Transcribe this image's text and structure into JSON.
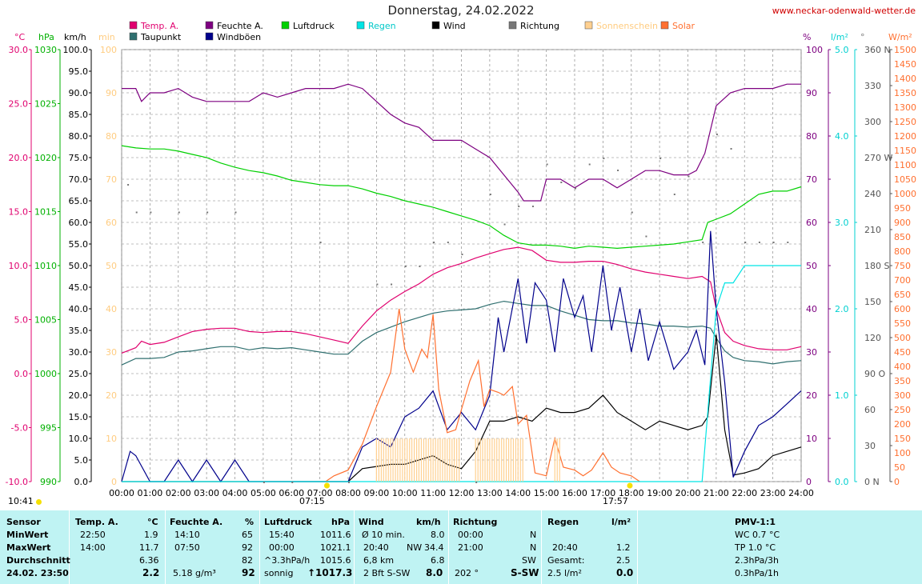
{
  "title": "Donnerstag, 24.02.2022",
  "url": "www.neckar-odenwald-wetter.de",
  "legend": [
    {
      "label": "Temp. A.",
      "color": "#e0006e"
    },
    {
      "label": "Taupunkt",
      "color": "#2f6f6f"
    },
    {
      "label": "Feuchte A.",
      "color": "#7d0080"
    },
    {
      "label": "Windböen",
      "color": "#00008b"
    },
    {
      "label": "Luftdruck",
      "color": "#00d000"
    },
    {
      "label": "Regen",
      "color": "#00e5e5"
    },
    {
      "label": "Wind",
      "color": "#000000"
    },
    {
      "label": "Richtung",
      "color": "#777777"
    },
    {
      "label": "Sonnenschein",
      "color": "#ffd090"
    },
    {
      "label": "Solar",
      "color": "#ff7030"
    }
  ],
  "units": {
    "temp": "°C",
    "press": "hPa",
    "wind": "km/h",
    "sun": "min",
    "hum": "%",
    "rain": "l/m²",
    "dir": "°",
    "solar": "W/m²"
  },
  "sunrise": "07:15",
  "sunset": "17:57",
  "corner_time": "10:41",
  "axes": {
    "temp": [
      "30.0",
      "25.0",
      "20.0",
      "15.0",
      "10.0",
      "5.0",
      "0.0",
      "-5.0",
      "-10.0"
    ],
    "press": [
      "1030",
      "1025",
      "1020",
      "1015",
      "1010",
      "1005",
      "1000",
      "995",
      "990"
    ],
    "wind": [
      "100.0",
      "95.0",
      "90.0",
      "85.0",
      "80.0",
      "75.0",
      "70.0",
      "65.0",
      "60.0",
      "55.0",
      "50.0",
      "45.0",
      "40.0",
      "35.0",
      "30.0",
      "25.0",
      "20.0",
      "15.0",
      "10.0",
      "5.0",
      "0.0"
    ],
    "sun": [
      "100",
      "90",
      "80",
      "70",
      "60",
      "50",
      "40",
      "30",
      "20",
      "10",
      "0"
    ],
    "hum": [
      "100",
      "90",
      "80",
      "70",
      "60",
      "50",
      "40",
      "30",
      "20",
      "10",
      "0"
    ],
    "rain": [
      "5.0",
      "4.0",
      "3.0",
      "2.0",
      "1.0",
      "0.0"
    ],
    "dir": [
      "360 N",
      "330",
      "300",
      "270 W",
      "240",
      "210",
      "180 S",
      "150",
      "120",
      "90 O",
      "60",
      "30",
      "0 N"
    ],
    "solar": [
      "1500",
      "1450",
      "1400",
      "1350",
      "1300",
      "1250",
      "1200",
      "1150",
      "1100",
      "1050",
      "1000",
      "950",
      "900",
      "850",
      "800",
      "750",
      "700",
      "650",
      "600",
      "550",
      "500",
      "450",
      "400",
      "350",
      "300",
      "250",
      "200",
      "150",
      "100",
      "50",
      "0"
    ],
    "time": [
      "00:00",
      "01:00",
      "02:00",
      "03:00",
      "04:00",
      "05:00",
      "06:00",
      "07:00",
      "08:00",
      "09:00",
      "10:00",
      "11:00",
      "12:00",
      "13:00",
      "14:00",
      "15:00",
      "16:00",
      "17:00",
      "18:00",
      "19:00",
      "20:00",
      "21:00",
      "22:00",
      "23:00",
      "24:00"
    ]
  },
  "chart_data": {
    "type": "line",
    "title": "Donnerstag, 24.02.2022",
    "x_unit": "hours",
    "series": [
      {
        "name": "Temp. A.",
        "unit": "°C",
        "color": "#e0006e",
        "axis": "temp",
        "x": [
          0,
          0.5,
          0.7,
          1,
          1.5,
          2,
          2.5,
          3,
          3.5,
          4,
          4.5,
          5,
          5.5,
          6,
          6.5,
          7,
          7.5,
          8,
          8.5,
          9,
          9.5,
          10,
          10.5,
          11,
          11.5,
          12,
          12.5,
          13,
          13.5,
          14,
          14.5,
          15,
          15.5,
          16,
          16.5,
          17,
          17.5,
          18,
          18.5,
          19,
          19.5,
          20,
          20.5,
          20.8,
          21,
          21.3,
          21.6,
          22,
          22.5,
          23,
          23.5,
          24
        ],
        "y": [
          1.9,
          2.4,
          3.0,
          2.7,
          2.9,
          3.4,
          3.9,
          4.1,
          4.2,
          4.2,
          3.9,
          3.8,
          3.9,
          3.9,
          3.7,
          3.4,
          3.1,
          2.8,
          4.4,
          5.8,
          6.8,
          7.6,
          8.3,
          9.2,
          9.8,
          10.2,
          10.7,
          11.1,
          11.5,
          11.7,
          11.4,
          10.5,
          10.3,
          10.3,
          10.4,
          10.4,
          10.1,
          9.7,
          9.4,
          9.2,
          9.0,
          8.8,
          9.0,
          8.5,
          6.0,
          3.8,
          3.0,
          2.6,
          2.3,
          2.2,
          2.2,
          2.5
        ]
      },
      {
        "name": "Taupunkt",
        "unit": "°C",
        "color": "#2f6f6f",
        "axis": "temp",
        "x": [
          0,
          0.5,
          1,
          1.5,
          2,
          2.5,
          3,
          3.5,
          4,
          4.5,
          5,
          5.5,
          6,
          6.5,
          7,
          7.5,
          8,
          8.5,
          9,
          9.5,
          10,
          10.5,
          11,
          11.5,
          12,
          12.5,
          13,
          13.5,
          14,
          14.5,
          15,
          15.5,
          16,
          16.5,
          17,
          17.5,
          18,
          18.5,
          19,
          19.5,
          20,
          20.5,
          20.8,
          21,
          21.3,
          21.6,
          22,
          22.5,
          23,
          23.5,
          24
        ],
        "y": [
          0.8,
          1.4,
          1.4,
          1.5,
          2.0,
          2.1,
          2.3,
          2.5,
          2.5,
          2.2,
          2.4,
          2.3,
          2.4,
          2.2,
          2.0,
          1.8,
          1.8,
          3.0,
          3.8,
          4.3,
          4.8,
          5.2,
          5.6,
          5.8,
          5.9,
          6.0,
          6.4,
          6.7,
          6.5,
          6.3,
          6.3,
          5.8,
          5.4,
          5.0,
          4.9,
          4.9,
          4.7,
          4.6,
          4.4,
          4.4,
          4.3,
          4.4,
          4.2,
          3.3,
          2.1,
          1.5,
          1.2,
          1.1,
          0.9,
          1.1,
          1.2
        ]
      },
      {
        "name": "Feuchte A.",
        "unit": "%",
        "color": "#7d0080",
        "axis": "hum",
        "x": [
          0,
          0.5,
          0.7,
          1,
          1.5,
          2,
          2.5,
          3,
          3.5,
          4,
          4.5,
          5,
          5.5,
          6,
          6.5,
          7,
          7.5,
          8,
          8.5,
          9,
          9.5,
          10,
          10.5,
          11,
          11.5,
          12,
          12.5,
          13,
          13.5,
          14,
          14.2,
          14.8,
          15,
          15.5,
          16,
          16.5,
          17,
          17.5,
          18,
          18.5,
          19,
          19.5,
          20,
          20.3,
          20.6,
          21,
          21.5,
          22,
          22.5,
          23,
          23.5,
          24
        ],
        "y": [
          91,
          91,
          88,
          90,
          90,
          91,
          89,
          88,
          88,
          88,
          88,
          90,
          89,
          90,
          91,
          91,
          91,
          92,
          91,
          88,
          85,
          83,
          82,
          79,
          79,
          79,
          77,
          75,
          71,
          67,
          65,
          65,
          70,
          70,
          68,
          70,
          70,
          68,
          70,
          72,
          72,
          71,
          71,
          72,
          76,
          87,
          90,
          91,
          91,
          91,
          92,
          92
        ]
      },
      {
        "name": "Luftdruck",
        "unit": "hPa",
        "color": "#00d000",
        "axis": "press",
        "x": [
          0,
          0.5,
          1,
          1.5,
          2,
          2.5,
          3,
          3.5,
          4,
          4.5,
          5,
          5.5,
          6,
          6.5,
          7,
          7.5,
          8,
          8.5,
          9,
          9.5,
          10,
          10.5,
          11,
          11.5,
          12,
          12.5,
          13,
          13.5,
          14,
          14.5,
          15,
          15.5,
          16,
          16.5,
          17,
          17.5,
          18,
          18.5,
          19,
          19.5,
          20,
          20.5,
          20.7,
          21,
          21.5,
          22,
          22.5,
          23,
          23.5,
          24
        ],
        "y": [
          1021.1,
          1020.9,
          1020.8,
          1020.8,
          1020.6,
          1020.3,
          1020.0,
          1019.5,
          1019.1,
          1018.8,
          1018.6,
          1018.3,
          1017.9,
          1017.7,
          1017.5,
          1017.4,
          1017.4,
          1017.1,
          1016.7,
          1016.4,
          1016.0,
          1015.7,
          1015.4,
          1015.0,
          1014.6,
          1014.2,
          1013.7,
          1012.8,
          1012.1,
          1011.9,
          1011.9,
          1011.8,
          1011.6,
          1011.8,
          1011.7,
          1011.6,
          1011.7,
          1011.8,
          1011.9,
          1012.0,
          1012.2,
          1012.4,
          1014.0,
          1014.3,
          1014.8,
          1015.7,
          1016.6,
          1016.9,
          1016.9,
          1017.3
        ]
      },
      {
        "name": "Wind",
        "unit": "km/h",
        "color": "#000000",
        "axis": "wind",
        "x": [
          0,
          8,
          8.5,
          9,
          9.5,
          10,
          10.5,
          11,
          11.5,
          12,
          12.5,
          13,
          13.5,
          14,
          14.5,
          15,
          15.5,
          16,
          16.5,
          17,
          17.5,
          18,
          18.5,
          19,
          19.5,
          20,
          20.5,
          20.7,
          21,
          21.3,
          21.6,
          22,
          22.5,
          23,
          23.5,
          24
        ],
        "y": [
          0,
          0,
          3,
          3.5,
          4,
          4,
          5,
          6,
          4,
          3,
          7,
          14,
          14,
          15,
          14,
          17,
          16,
          16,
          17,
          20,
          16,
          14,
          12,
          14,
          13,
          12,
          13,
          15,
          34,
          12,
          1.5,
          2,
          3,
          6,
          7,
          8
        ]
      },
      {
        "name": "Windböen",
        "unit": "km/h",
        "color": "#00008b",
        "axis": "wind",
        "x": [
          0,
          0.3,
          0.5,
          1,
          1.5,
          2,
          2.5,
          3,
          3.5,
          4,
          4.5,
          5,
          6,
          7,
          8,
          8.5,
          9,
          9.5,
          10,
          10.5,
          11,
          11.5,
          12,
          12.5,
          13,
          13.3,
          13.5,
          14,
          14.3,
          14.6,
          15,
          15.3,
          15.6,
          16,
          16.3,
          16.6,
          17,
          17.3,
          17.6,
          18,
          18.3,
          18.6,
          19,
          19.5,
          20,
          20.3,
          20.6,
          20.8,
          21,
          21.3,
          21.6,
          22,
          22.5,
          23,
          23.5,
          24
        ],
        "y": [
          0,
          7,
          6,
          0,
          0,
          5,
          0,
          5,
          0,
          5,
          0,
          0,
          0,
          0,
          0,
          8,
          10,
          8,
          15,
          17,
          21,
          12,
          16,
          12,
          20,
          38,
          30,
          47,
          32,
          46,
          42,
          30,
          47,
          38,
          43,
          30,
          50,
          35,
          45,
          30,
          40,
          28,
          37,
          26,
          30,
          35,
          27,
          58,
          40,
          23,
          1,
          7,
          13,
          15,
          18,
          21
        ]
      },
      {
        "name": "Solar",
        "unit": "W/m²",
        "color": "#ff7030",
        "axis": "solar",
        "x": [
          7.2,
          7.5,
          8,
          8.5,
          9,
          9.5,
          9.8,
          10,
          10.3,
          10.6,
          10.8,
          11,
          11.2,
          11.5,
          11.8,
          12,
          12.3,
          12.6,
          12.8,
          13,
          13.3,
          13.5,
          13.8,
          14,
          14.3,
          14.6,
          15,
          15.3,
          15.6,
          16,
          16.3,
          16.6,
          17,
          17.3,
          17.6,
          18,
          18.3
        ],
        "y": [
          0,
          20,
          40,
          130,
          260,
          380,
          600,
          460,
          380,
          460,
          430,
          580,
          320,
          170,
          180,
          250,
          350,
          420,
          260,
          320,
          310,
          300,
          330,
          200,
          230,
          30,
          20,
          150,
          50,
          40,
          20,
          40,
          100,
          50,
          30,
          20,
          0
        ]
      },
      {
        "name": "Regen",
        "unit": "l/m²",
        "color": "#00e5e5",
        "axis": "rain",
        "x": [
          0,
          20.5,
          20.8,
          21,
          21.3,
          21.6,
          22,
          22.5,
          23,
          23.5,
          24
        ],
        "y": [
          0,
          0,
          1.2,
          2.0,
          2.3,
          2.3,
          2.5,
          2.5,
          2.5,
          2.5,
          2.5
        ]
      },
      {
        "name": "Richtung",
        "unit": "°",
        "color": "#777777",
        "axis": "dir",
        "style": "dots",
        "x": [
          0.2,
          0.5,
          1,
          2,
          3,
          4,
          5,
          6,
          7,
          8,
          9,
          9.5,
          10,
          10.5,
          11,
          11.5,
          12,
          12.5,
          13,
          13.5,
          14,
          14.5,
          15,
          15.5,
          16,
          16.5,
          17,
          17.5,
          18,
          18.5,
          19,
          19.5,
          20,
          20.5,
          21,
          21.5,
          22,
          22.5,
          23,
          23.5
        ],
        "y": [
          248,
          225,
          225,
          225,
          225,
          225,
          0,
          0,
          200,
          0,
          165,
          165,
          180,
          180,
          200,
          200,
          190,
          0,
          240,
          215,
          230,
          230,
          265,
          250,
          245,
          265,
          270,
          260,
          225,
          205,
          270,
          240,
          255,
          200,
          290,
          278,
          200,
          200,
          200,
          200
        ]
      },
      {
        "name": "Sonnenschein",
        "unit": "min",
        "color": "#ffd090",
        "axis": "sun",
        "style": "bars",
        "x": [
          9.0,
          9.25,
          9.5,
          9.75,
          10.0,
          10.25,
          10.5,
          10.75,
          11.0,
          11.25,
          11.5,
          11.75,
          12.5,
          12.75,
          13.0,
          13.25,
          13.5,
          13.75,
          14.0,
          15.3
        ],
        "y": [
          10,
          10,
          10,
          10,
          10,
          10,
          10,
          10,
          10,
          10,
          10,
          10,
          10,
          10,
          10,
          10,
          10,
          10,
          10,
          10
        ]
      }
    ]
  },
  "table": {
    "sensor": {
      "h": "Sensor",
      "r1": "MinWert",
      "r2": "MaxWert",
      "r3": "Durchschnitt",
      "r4": "24.02. 23:50"
    },
    "temp": {
      "h": "Temp. A.",
      "u": "°C",
      "min_t": "22:50",
      "min_v": "1.9",
      "max_t": "14:00",
      "max_v": "11.7",
      "avg": "6.36",
      "cur": "2.2"
    },
    "hum": {
      "h": "Feuchte A.",
      "u": "%",
      "min_t": "14:10",
      "min_v": "65",
      "max_t": "07:50",
      "max_v": "92",
      "avg": "82",
      "abs": "5.18 g/m³",
      "cur": "92"
    },
    "press": {
      "h": "Luftdruck",
      "u": "hPa",
      "min_t": "15:40",
      "min_v": "1011.6",
      "max_t": "00:00",
      "max_v": "1021.1",
      "trend": "^3.3hPa/h",
      "avg": "1015.6",
      "cond": "sonnig",
      "cur": "↑1017.3"
    },
    "wind": {
      "h": "Wind",
      "u": "km/h",
      "r1l": "Ø 10 min.",
      "r1v": "8.0",
      "r2l": "20:40",
      "r2d": "NW",
      "r2v": "34.4",
      "r3l": "6,8 km",
      "r3v": "6.8",
      "r4l": "2 Bft S-SW",
      "r4v": "8.0"
    },
    "dir": {
      "h": "Richtung",
      "r1l": "00:00",
      "r1v": "N",
      "r2l": "21:00",
      "r2v": "N",
      "r3v": "SW",
      "r4l": "202 °",
      "r4v": "S-SW"
    },
    "rain": {
      "h": "Regen",
      "u": "l/m²",
      "r2l": "20:40",
      "r2v": "1.2",
      "r3l": "Gesamt:",
      "r3v": "2.5",
      "r4l": "2.5 l/m²",
      "r4v": "0.0"
    },
    "pmv": {
      "h": "PMV-1:1",
      "r1": "WC 0.7 °C",
      "r2": "TP 1.0 °C",
      "r3": "2.3hPa/3h",
      "r4": "0.3hPa/1h"
    }
  }
}
